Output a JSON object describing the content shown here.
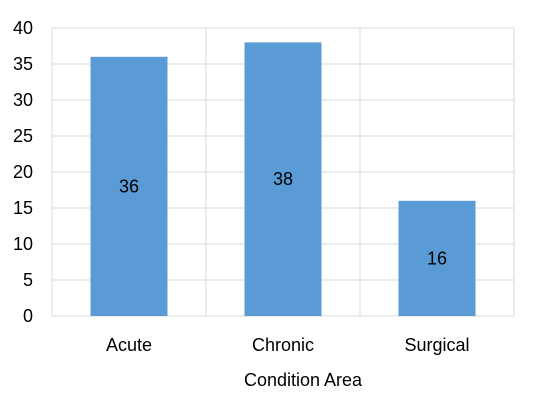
{
  "chart_data": {
    "type": "bar",
    "categories": [
      "Acute",
      "Chronic",
      "Surgical"
    ],
    "values": [
      36,
      38,
      16
    ],
    "xlabel": "Condition Area",
    "ylabel": "",
    "ylim": [
      0,
      40
    ],
    "yticks": [
      0,
      5,
      10,
      15,
      20,
      25,
      30,
      35,
      40
    ],
    "grid": true,
    "bar_color": "#5B9BD5",
    "data_labels": [
      "36",
      "38",
      "16"
    ]
  }
}
